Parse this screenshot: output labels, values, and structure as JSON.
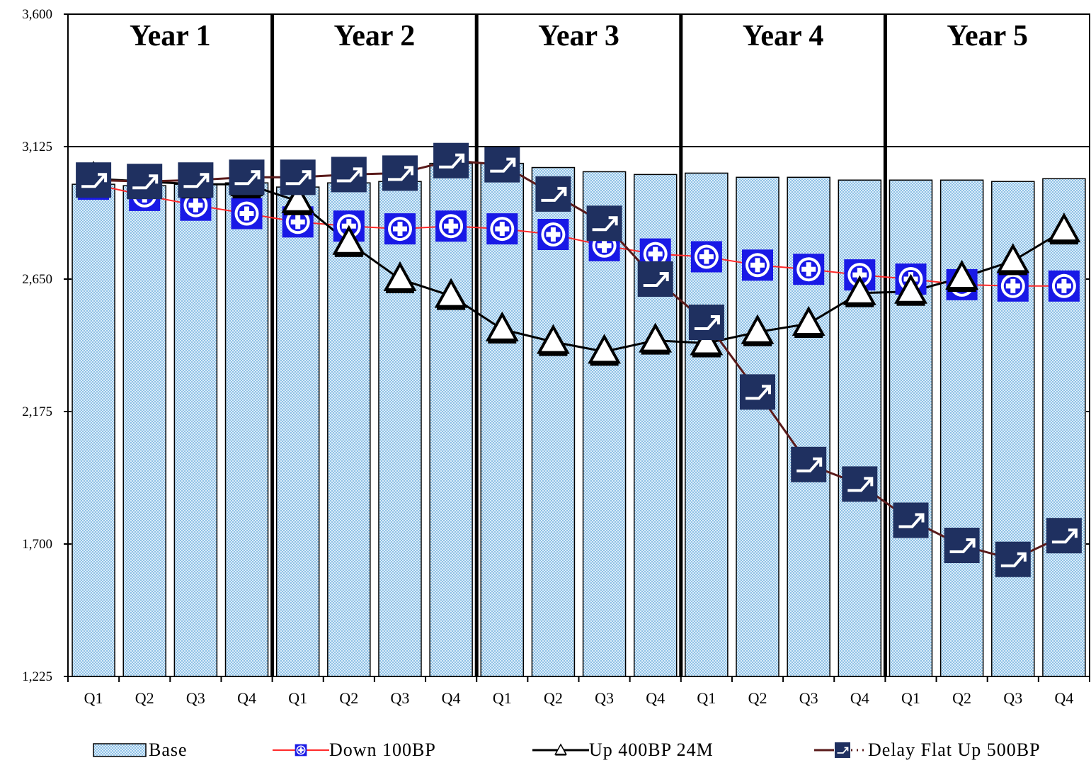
{
  "chart_data": {
    "type": "bar",
    "ylim": [
      1225,
      3600
    ],
    "yticks": [
      "1,225",
      "1,700",
      "2,175",
      "2,650",
      "3,125",
      "3,600"
    ],
    "ytick_values": [
      1225,
      1700,
      2175,
      2650,
      3125,
      3600
    ],
    "years": [
      "Year 1",
      "Year 2",
      "Year 3",
      "Year 4",
      "Year 5"
    ],
    "categories": [
      "Q1",
      "Q2",
      "Q3",
      "Q4",
      "Q1",
      "Q2",
      "Q3",
      "Q4",
      "Q1",
      "Q2",
      "Q3",
      "Q4",
      "Q1",
      "Q2",
      "Q3",
      "Q4",
      "Q1",
      "Q2",
      "Q3",
      "Q4"
    ],
    "series": [
      {
        "name": "Base",
        "kind": "bar",
        "values": [
          2990,
          2985,
          2990,
          2995,
          2980,
          2995,
          3000,
          3065,
          3065,
          3050,
          3035,
          3025,
          3030,
          3015,
          3015,
          3005,
          3005,
          3005,
          3000,
          3010
        ]
      },
      {
        "name": "Down 100BP",
        "kind": "line",
        "values": [
          2990,
          2950,
          2915,
          2885,
          2855,
          2840,
          2830,
          2840,
          2830,
          2810,
          2770,
          2740,
          2730,
          2700,
          2685,
          2665,
          2650,
          2630,
          2625,
          2625
        ]
      },
      {
        "name": "Up 400BP 24M",
        "kind": "line",
        "values": [
          3010,
          3000,
          2990,
          2990,
          2930,
          2780,
          2650,
          2590,
          2470,
          2425,
          2390,
          2430,
          2420,
          2460,
          2490,
          2600,
          2605,
          2655,
          2715,
          2825
        ]
      },
      {
        "name": "Delay Flat Up 500BP",
        "kind": "line",
        "values": [
          3005,
          3000,
          3005,
          3015,
          3015,
          3025,
          3030,
          3075,
          3060,
          2955,
          2850,
          2650,
          2495,
          2245,
          1985,
          1915,
          1785,
          1695,
          1645,
          1730
        ]
      }
    ],
    "colors": {
      "base_fill": "#cfe6f7",
      "base_hatch": "#8fc1e6",
      "down": "#ff2a2a",
      "up": "#000000",
      "delay": "#5a1a1a",
      "marker_dark": "#1f3060",
      "marker_blue": "#1919e6"
    }
  },
  "legend": {
    "base": "Base",
    "down": "Down 100BP",
    "up": "Up 400BP 24M",
    "delay": "Delay Flat Up 500BP"
  }
}
